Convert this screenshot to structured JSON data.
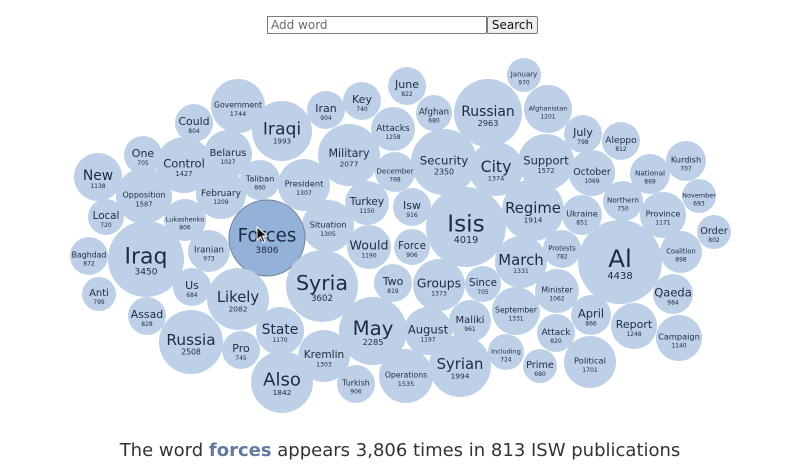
{
  "search": {
    "placeholder": "Add word",
    "value": "",
    "button_label": "Search"
  },
  "selected_word": "Forces",
  "footer": {
    "prefix": "The word",
    "word": "forces",
    "suffix": "appears 3,806 times in 813 ISW publications"
  },
  "colors": {
    "bubble": "#bdd0e7",
    "selected": "#94b1d9",
    "text": "#1d2c40"
  },
  "words": [
    {
      "word": "January",
      "count": "970"
    },
    {
      "word": "June",
      "count": "822"
    },
    {
      "word": "Government",
      "count": "1744"
    },
    {
      "word": "Key",
      "count": "740"
    },
    {
      "word": "Iran",
      "count": "904"
    },
    {
      "word": "Russian",
      "count": "2963"
    },
    {
      "word": "Afghanistan",
      "count": "1201"
    },
    {
      "word": "Could",
      "count": "804"
    },
    {
      "word": "Afghan",
      "count": "680"
    },
    {
      "word": "Attacks",
      "count": "1258"
    },
    {
      "word": "Iraqi",
      "count": "1993"
    },
    {
      "word": "July",
      "count": "798"
    },
    {
      "word": "Aleppo",
      "count": "812"
    },
    {
      "word": "One",
      "count": "705"
    },
    {
      "word": "Belarus",
      "count": "1027"
    },
    {
      "word": "Military",
      "count": "2077"
    },
    {
      "word": "Security",
      "count": "2350"
    },
    {
      "word": "Control",
      "count": "1427"
    },
    {
      "word": "Support",
      "count": "1572"
    },
    {
      "word": "Kurdish",
      "count": "707"
    },
    {
      "word": "City",
      "count": "1374"
    },
    {
      "word": "National",
      "count": "869"
    },
    {
      "word": "December",
      "count": "768"
    },
    {
      "word": "New",
      "count": "1138"
    },
    {
      "word": "Taliban",
      "count": "860"
    },
    {
      "word": "October",
      "count": "1069"
    },
    {
      "word": "President",
      "count": "1307"
    },
    {
      "word": "February",
      "count": "1209"
    },
    {
      "word": "Opposition",
      "count": "1587"
    },
    {
      "word": "November",
      "count": "693"
    },
    {
      "word": "Northern",
      "count": "750"
    },
    {
      "word": "Turkey",
      "count": "1150"
    },
    {
      "word": "Regime",
      "count": "1914"
    },
    {
      "word": "Isw",
      "count": "916"
    },
    {
      "word": "Lukashenko",
      "count": "806"
    },
    {
      "word": "Local",
      "count": "720"
    },
    {
      "word": "Ukraine",
      "count": "851"
    },
    {
      "word": "Province",
      "count": "1171"
    },
    {
      "word": "Situation",
      "count": "1305"
    },
    {
      "word": "Isis",
      "count": "4019"
    },
    {
      "word": "Forces",
      "count": "3806"
    },
    {
      "word": "Order",
      "count": "802"
    },
    {
      "word": "Iranian",
      "count": "973"
    },
    {
      "word": "Force",
      "count": "906"
    },
    {
      "word": "Would",
      "count": "1190"
    },
    {
      "word": "Baghdad",
      "count": "872"
    },
    {
      "word": "Protests",
      "count": "782"
    },
    {
      "word": "Al",
      "count": "4438"
    },
    {
      "word": "Iraq",
      "count": "3450"
    },
    {
      "word": "March",
      "count": "1331"
    },
    {
      "word": "Coalition",
      "count": "898"
    },
    {
      "word": "Two",
      "count": "819"
    },
    {
      "word": "Groups",
      "count": "1373"
    },
    {
      "word": "Syria",
      "count": "3602"
    },
    {
      "word": "Since",
      "count": "705"
    },
    {
      "word": "Us",
      "count": "684"
    },
    {
      "word": "Anti",
      "count": "799"
    },
    {
      "word": "Minister",
      "count": "1062"
    },
    {
      "word": "Qaeda",
      "count": "984"
    },
    {
      "word": "Likely",
      "count": "2082"
    },
    {
      "word": "September",
      "count": "1331"
    },
    {
      "word": "Assad",
      "count": "828"
    },
    {
      "word": "April",
      "count": "866"
    },
    {
      "word": "Maliki",
      "count": "961"
    },
    {
      "word": "Report",
      "count": "1248"
    },
    {
      "word": "May",
      "count": "2285"
    },
    {
      "word": "August",
      "count": "1197"
    },
    {
      "word": "State",
      "count": "1170"
    },
    {
      "word": "Attack",
      "count": "820"
    },
    {
      "word": "Russia",
      "count": "2508"
    },
    {
      "word": "Campaign",
      "count": "1140"
    },
    {
      "word": "Kremlin",
      "count": "1303"
    },
    {
      "word": "Including",
      "count": "724"
    },
    {
      "word": "Pro",
      "count": "745"
    },
    {
      "word": "Syrian",
      "count": "1994"
    },
    {
      "word": "Political",
      "count": "1701"
    },
    {
      "word": "Prime",
      "count": "680"
    },
    {
      "word": "Turkish",
      "count": "906"
    },
    {
      "word": "Operations",
      "count": "1535"
    },
    {
      "word": "Also",
      "count": "1842"
    }
  ]
}
